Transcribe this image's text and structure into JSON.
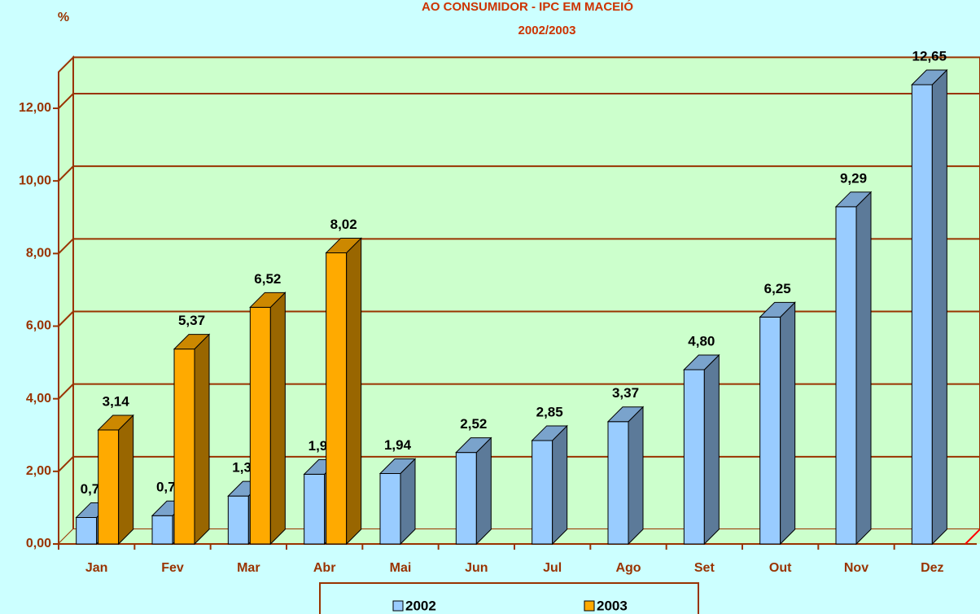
{
  "chart_data": {
    "type": "bar3d",
    "title": "AO CONSUMIDOR - IPC EM MACEIÓ",
    "subtitle": "2002/2003",
    "y_label": "%",
    "categories": [
      "Jan",
      "Fev",
      "Mar",
      "Abr",
      "Mai",
      "Jun",
      "Jul",
      "Ago",
      "Set",
      "Out",
      "Nov",
      "Dez"
    ],
    "series": [
      {
        "name": "2002",
        "color": "#99ccff",
        "values": [
          0.73,
          0.78,
          1.32,
          1.92,
          1.94,
          2.52,
          2.85,
          3.37,
          4.8,
          6.25,
          9.29,
          12.65
        ],
        "value_labels": [
          "0,73",
          "0,78",
          "1,32",
          "1,92",
          "1,94",
          "2,52",
          "2,85",
          "3,37",
          "4,80",
          "6,25",
          "9,29",
          "12,65"
        ]
      },
      {
        "name": "2003",
        "color": "#ffaa00",
        "values": [
          3.14,
          5.37,
          6.52,
          8.02,
          null,
          null,
          null,
          null,
          null,
          null,
          null,
          null
        ],
        "value_labels": [
          "3,14",
          "5,37",
          "6,52",
          "8,02",
          null,
          null,
          null,
          null,
          null,
          null,
          null,
          null
        ]
      }
    ],
    "ylim": [
      0,
      13
    ],
    "yticks": [
      {
        "value": 0,
        "label": "0,00"
      },
      {
        "value": 2,
        "label": "2,00"
      },
      {
        "value": 4,
        "label": "4,00"
      },
      {
        "value": 6,
        "label": "6,00"
      },
      {
        "value": 8,
        "label": "8,00"
      },
      {
        "value": 10,
        "label": "10,00"
      },
      {
        "value": 12,
        "label": "12,00"
      }
    ],
    "grid": true
  }
}
